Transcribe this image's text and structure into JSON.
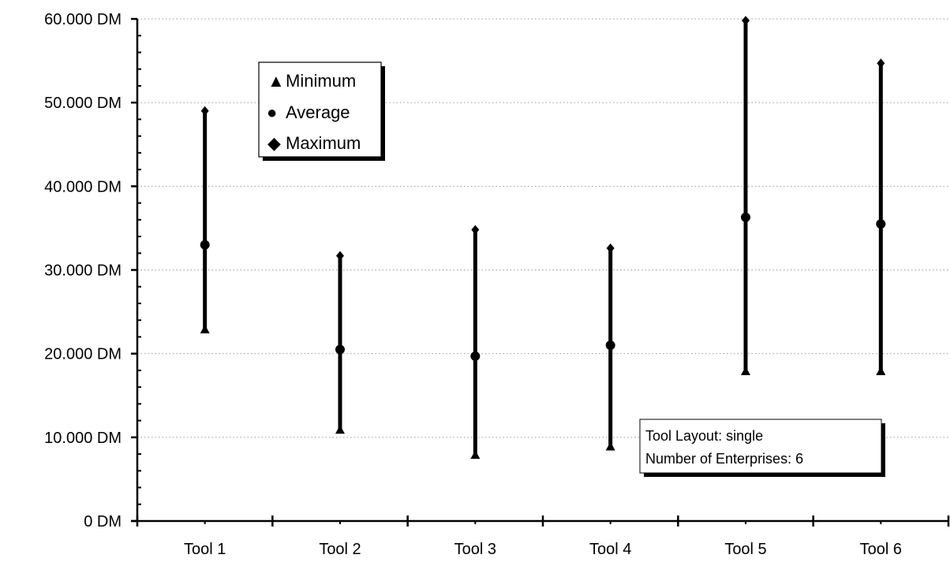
{
  "chart_data": {
    "type": "scatter",
    "subtype": "high-low-average",
    "categories": [
      "Tool 1",
      "Tool 2",
      "Tool 3",
      "Tool 4",
      "Tool 5",
      "Tool 6"
    ],
    "series": [
      {
        "name": "Minimum",
        "marker": "triangle",
        "values": [
          23000,
          11000,
          8000,
          9000,
          18000,
          18000
        ]
      },
      {
        "name": "Average",
        "marker": "circle",
        "values": [
          33000,
          20500,
          19700,
          21000,
          36300,
          35500
        ]
      },
      {
        "name": "Maximum",
        "marker": "diamond",
        "values": [
          49000,
          31700,
          34800,
          32600,
          59800,
          54700
        ]
      }
    ],
    "ylim": [
      0,
      60000
    ],
    "y_ticks": [
      0,
      10000,
      20000,
      30000,
      40000,
      50000,
      60000
    ],
    "y_tick_labels": [
      "0 DM",
      "10.000 DM",
      "20.000 DM",
      "30.000 DM",
      "40.000 DM",
      "50.000 DM",
      "60.000 DM"
    ],
    "grid": "horizontal dotted",
    "legend": {
      "placement": "top-left",
      "entries": [
        {
          "symbol": "▲",
          "label": "Minimum"
        },
        {
          "symbol": "●",
          "label": "Average"
        },
        {
          "symbol": "◆",
          "label": "Maximum"
        }
      ]
    },
    "annotation": {
      "placement": "bottom-right",
      "lines": [
        "Tool Layout: single",
        "Number of Enterprises: 6"
      ]
    },
    "colors": {
      "marks": "#000000",
      "grid": "#999999",
      "background": "#ffffff"
    }
  }
}
